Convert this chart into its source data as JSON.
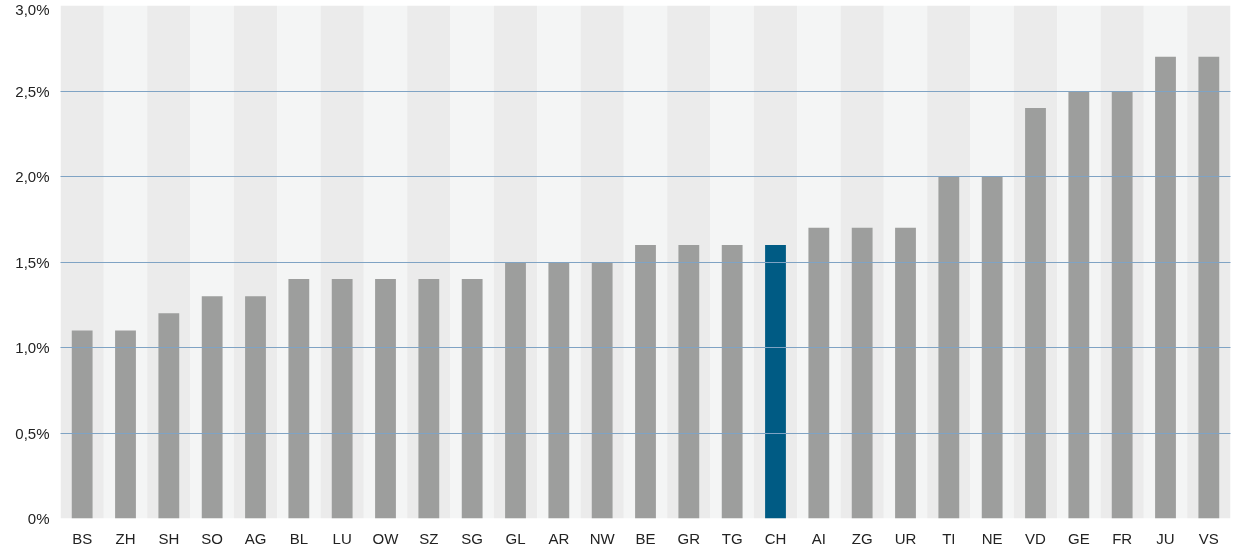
{
  "chart_data": {
    "type": "bar",
    "categories": [
      "BS",
      "ZH",
      "SH",
      "SO",
      "AG",
      "BL",
      "LU",
      "OW",
      "SZ",
      "SG",
      "GL",
      "AR",
      "NW",
      "BE",
      "GR",
      "TG",
      "CH",
      "AI",
      "ZG",
      "UR",
      "TI",
      "NE",
      "VD",
      "GE",
      "FR",
      "JU",
      "VS"
    ],
    "values": [
      1.1,
      1.1,
      1.2,
      1.3,
      1.3,
      1.4,
      1.4,
      1.4,
      1.4,
      1.4,
      1.5,
      1.5,
      1.5,
      1.6,
      1.6,
      1.6,
      1.6,
      1.7,
      1.7,
      1.7,
      2.0,
      2.0,
      2.4,
      2.5,
      2.5,
      2.7,
      2.7
    ],
    "colors": [
      "#9d9e9d",
      "#9d9e9d",
      "#9d9e9d",
      "#9d9e9d",
      "#9d9e9d",
      "#9d9e9d",
      "#9d9e9d",
      "#9d9e9d",
      "#9d9e9d",
      "#9d9e9d",
      "#9d9e9d",
      "#9d9e9d",
      "#9d9e9d",
      "#9d9e9d",
      "#9d9e9d",
      "#9d9e9d",
      "#005b84",
      "#9d9e9d",
      "#9d9e9d",
      "#9d9e9d",
      "#9d9e9d",
      "#9d9e9d",
      "#9d9e9d",
      "#9d9e9d",
      "#9d9e9d",
      "#9d9e9d",
      "#9d9e9d"
    ],
    "ylim": [
      0,
      3.0
    ],
    "yticks": [
      {
        "value": 0,
        "label": "0%"
      },
      {
        "value": 0.5,
        "label": "0,5%"
      },
      {
        "value": 1.0,
        "label": "1,0%"
      },
      {
        "value": 1.5,
        "label": "1,5%"
      },
      {
        "value": 2.0,
        "label": "2,0%"
      },
      {
        "value": 2.5,
        "label": "2,5%"
      },
      {
        "value": 3.0,
        "label": "3,0%"
      }
    ],
    "grid": "y"
  }
}
